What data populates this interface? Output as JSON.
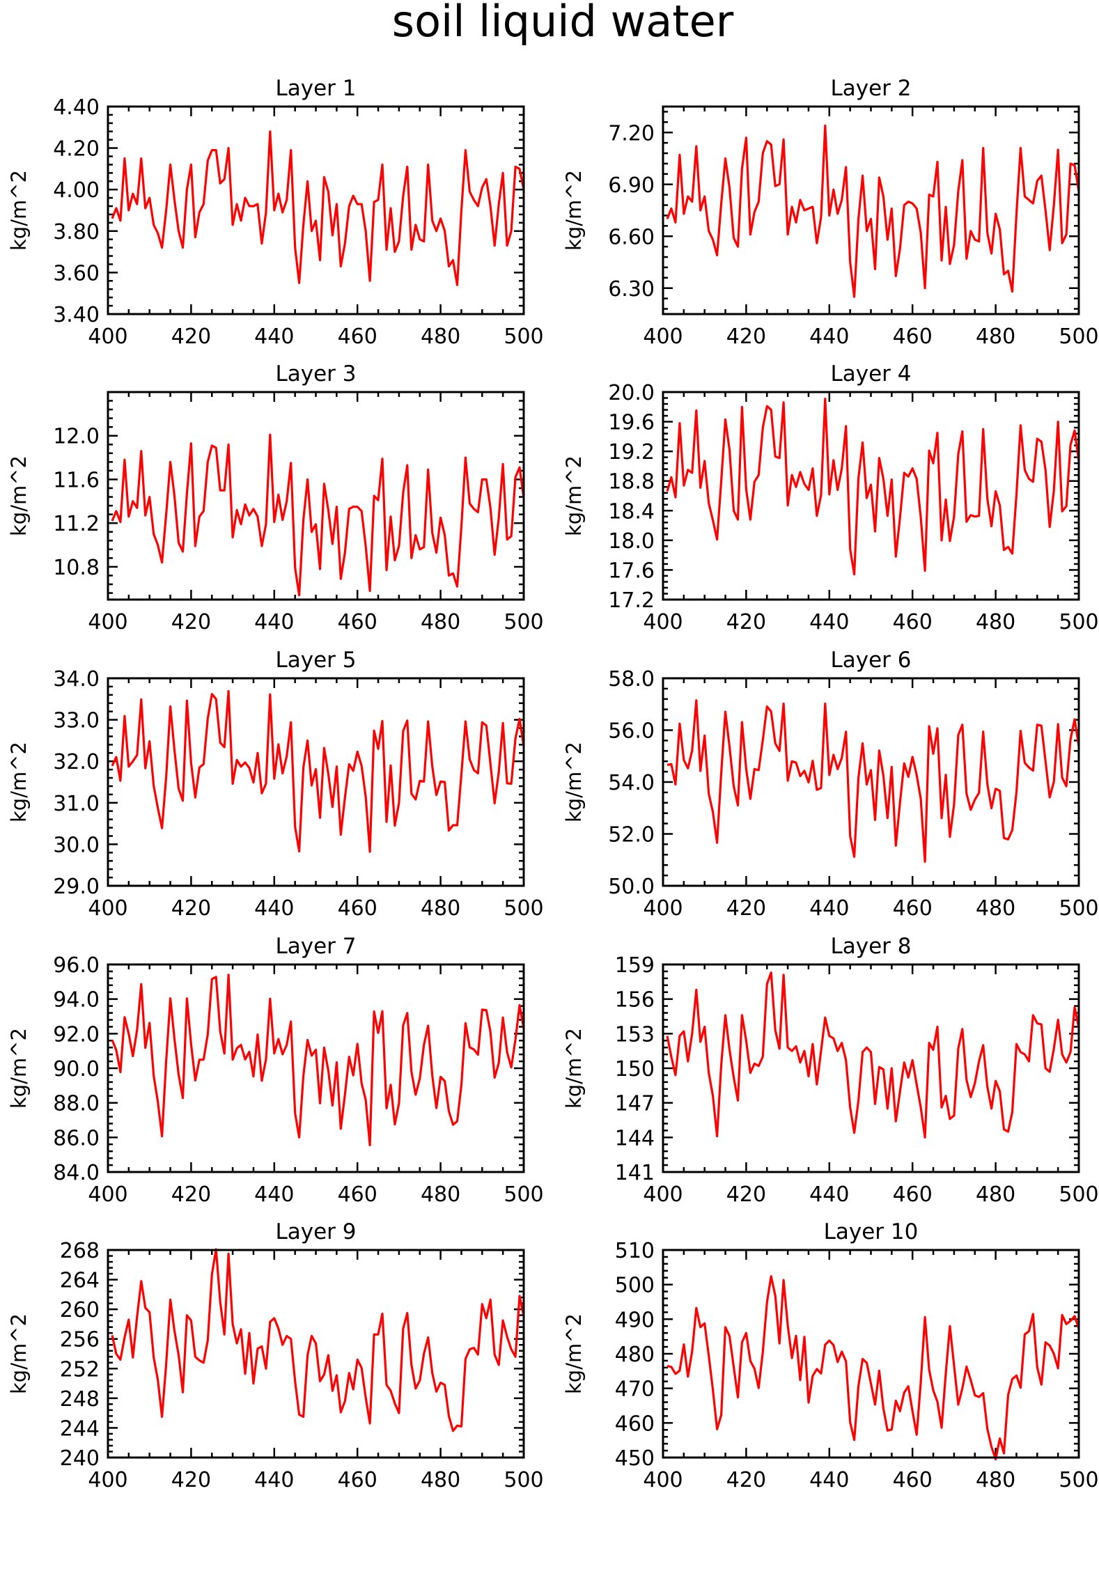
{
  "figure": {
    "title": "soil liquid water",
    "line_color": "#ff0000"
  },
  "chart_data": [
    {
      "type": "line",
      "title": "Layer 1",
      "xlabel": "",
      "ylabel": "kg/m^2",
      "xlim": [
        400,
        500
      ],
      "ylim": [
        3.4,
        4.4
      ],
      "xticks": [
        "400",
        "420",
        "440",
        "460",
        "480",
        "500"
      ],
      "yticks": [
        "3.40",
        "3.60",
        "3.80",
        "4.00",
        "4.20",
        "4.40"
      ],
      "x_start": 401,
      "values": [
        3.86,
        3.91,
        3.85,
        4.15,
        3.9,
        3.98,
        3.93,
        4.15,
        3.91,
        3.96,
        3.83,
        3.79,
        3.72,
        3.9,
        4.12,
        3.95,
        3.8,
        3.72,
        4.0,
        4.12,
        3.77,
        3.89,
        3.93,
        4.14,
        4.19,
        4.19,
        4.03,
        4.05,
        4.2,
        3.83,
        3.93,
        3.85,
        3.96,
        3.92,
        3.92,
        3.93,
        3.74,
        3.89,
        4.28,
        3.9,
        3.98,
        3.89,
        3.95,
        4.19,
        3.72,
        3.55,
        3.83,
        4.04,
        3.8,
        3.85,
        3.66,
        4.06,
        3.99,
        3.78,
        3.93,
        3.63,
        3.74,
        3.92,
        3.97,
        3.93,
        3.93,
        3.8,
        3.56,
        3.94,
        3.95,
        4.12,
        3.71,
        3.91,
        3.7,
        3.75,
        3.97,
        4.11,
        3.71,
        3.83,
        3.76,
        3.75,
        4.12,
        3.85,
        3.8,
        3.86,
        3.8,
        3.63,
        3.66,
        3.54,
        3.9,
        4.19,
        3.99,
        3.95,
        3.92,
        4.01,
        4.05,
        3.92,
        3.73,
        3.93,
        4.08,
        3.73,
        3.8,
        4.11,
        4.1,
        4.0
      ]
    },
    {
      "type": "line",
      "title": "Layer 2",
      "xlabel": "",
      "ylabel": "kg/m^2",
      "xlim": [
        400,
        500
      ],
      "ylim": [
        6.15,
        7.35
      ],
      "xticks": [
        "400",
        "420",
        "440",
        "460",
        "480",
        "500"
      ],
      "yticks": [
        "6.30",
        "6.60",
        "6.90",
        "7.20"
      ],
      "x_start": 401,
      "values": [
        6.7,
        6.76,
        6.68,
        7.07,
        6.73,
        6.83,
        6.8,
        7.12,
        6.75,
        6.83,
        6.63,
        6.58,
        6.49,
        6.79,
        7.05,
        6.88,
        6.59,
        6.54,
        6.99,
        7.17,
        6.61,
        6.74,
        6.8,
        7.08,
        7.15,
        7.13,
        6.89,
        6.9,
        7.16,
        6.61,
        6.77,
        6.68,
        6.81,
        6.75,
        6.76,
        6.77,
        6.56,
        6.71,
        7.24,
        6.72,
        6.87,
        6.73,
        6.81,
        7.0,
        6.45,
        6.25,
        6.7,
        6.95,
        6.63,
        6.7,
        6.41,
        6.94,
        6.83,
        6.58,
        6.76,
        6.37,
        6.53,
        6.78,
        6.8,
        6.79,
        6.76,
        6.62,
        6.3,
        6.84,
        6.83,
        7.03,
        6.46,
        6.77,
        6.44,
        6.55,
        6.86,
        7.04,
        6.47,
        6.63,
        6.58,
        6.57,
        7.11,
        6.62,
        6.5,
        6.73,
        6.64,
        6.38,
        6.4,
        6.28,
        6.73,
        7.11,
        6.83,
        6.81,
        6.79,
        6.92,
        6.95,
        6.75,
        6.52,
        6.78,
        7.1,
        6.56,
        6.61,
        7.02,
        7.01,
        6.86
      ]
    },
    {
      "type": "line",
      "title": "Layer 3",
      "xlabel": "",
      "ylabel": "kg/m^2",
      "xlim": [
        400,
        500
      ],
      "ylim": [
        10.5,
        12.4
      ],
      "xticks": [
        "400",
        "420",
        "440",
        "460",
        "480",
        "500"
      ],
      "yticks": [
        "10.8",
        "11.2",
        "11.6",
        "12.0"
      ],
      "x_start": 401,
      "values": [
        11.22,
        11.31,
        11.21,
        11.78,
        11.26,
        11.4,
        11.34,
        11.86,
        11.27,
        11.44,
        11.1,
        11.0,
        10.84,
        11.28,
        11.76,
        11.45,
        11.02,
        10.94,
        11.47,
        11.93,
        10.99,
        11.26,
        11.31,
        11.76,
        11.91,
        11.89,
        11.5,
        11.5,
        11.92,
        11.07,
        11.32,
        11.19,
        11.37,
        11.27,
        11.33,
        11.26,
        10.99,
        11.19,
        12.01,
        11.21,
        11.46,
        11.23,
        11.4,
        11.75,
        10.79,
        10.54,
        11.23,
        11.6,
        11.12,
        11.19,
        10.78,
        11.56,
        11.32,
        11.01,
        11.35,
        10.69,
        10.93,
        11.33,
        11.35,
        11.35,
        11.31,
        10.99,
        10.58,
        11.45,
        11.41,
        11.79,
        10.77,
        11.26,
        10.86,
        10.99,
        11.48,
        11.73,
        10.88,
        11.09,
        10.96,
        10.98,
        11.69,
        11.11,
        10.93,
        11.25,
        11.09,
        10.72,
        10.74,
        10.62,
        11.17,
        11.8,
        11.38,
        11.33,
        11.3,
        11.6,
        11.6,
        11.34,
        10.91,
        11.25,
        11.74,
        11.05,
        11.08,
        11.62,
        11.71,
        11.43
      ]
    },
    {
      "type": "line",
      "title": "Layer 4",
      "xlabel": "",
      "ylabel": "kg/m^2",
      "xlim": [
        400,
        500
      ],
      "ylim": [
        17.2,
        20.0
      ],
      "xticks": [
        "400",
        "420",
        "440",
        "460",
        "480",
        "500"
      ],
      "yticks": [
        "17.2",
        "17.6",
        "18.0",
        "18.4",
        "18.8",
        "19.2",
        "19.6",
        "20.0"
      ],
      "x_start": 401,
      "values": [
        18.66,
        18.85,
        18.58,
        19.58,
        18.74,
        18.95,
        18.91,
        19.75,
        18.71,
        19.07,
        18.5,
        18.27,
        18.01,
        18.8,
        19.63,
        19.22,
        18.4,
        18.28,
        19.8,
        18.69,
        18.28,
        18.79,
        18.88,
        19.52,
        19.81,
        19.76,
        19.13,
        19.11,
        19.86,
        18.47,
        18.88,
        18.72,
        18.92,
        18.76,
        18.68,
        18.97,
        18.33,
        18.61,
        19.91,
        18.62,
        19.08,
        18.68,
        18.97,
        19.54,
        17.88,
        17.54,
        18.84,
        19.32,
        18.57,
        18.75,
        18.12,
        19.11,
        18.83,
        18.33,
        18.82,
        17.78,
        18.31,
        18.91,
        18.86,
        18.97,
        18.83,
        18.31,
        17.59,
        19.21,
        19.04,
        19.45,
        18.0,
        18.55,
        17.99,
        18.32,
        19.16,
        19.47,
        18.25,
        18.34,
        18.32,
        18.33,
        19.5,
        18.56,
        18.19,
        18.66,
        18.47,
        17.87,
        17.91,
        17.82,
        18.62,
        19.55,
        18.95,
        18.83,
        18.79,
        19.37,
        19.33,
        18.95,
        18.18,
        18.67,
        19.6,
        18.39,
        18.46,
        19.29,
        19.48,
        19.07
      ]
    },
    {
      "type": "line",
      "title": "Layer 5",
      "xlabel": "",
      "ylabel": "kg/m^2",
      "xlim": [
        400,
        500
      ],
      "ylim": [
        29.0,
        34.0
      ],
      "xticks": [
        "400",
        "420",
        "440",
        "460",
        "480",
        "500"
      ],
      "yticks": [
        "29.0",
        "30.0",
        "31.0",
        "32.0",
        "33.0",
        "34.0"
      ],
      "x_start": 401,
      "values": [
        31.89,
        32.1,
        31.53,
        33.09,
        31.87,
        32.0,
        32.15,
        33.49,
        31.83,
        32.48,
        31.41,
        30.88,
        30.39,
        31.62,
        33.32,
        32.27,
        31.34,
        31.05,
        33.46,
        31.96,
        31.13,
        31.85,
        31.93,
        33.03,
        33.62,
        33.5,
        32.45,
        32.34,
        33.69,
        31.46,
        32.03,
        31.87,
        31.97,
        31.84,
        31.49,
        32.2,
        31.23,
        31.46,
        33.61,
        31.58,
        32.41,
        31.71,
        32.12,
        32.94,
        30.42,
        29.83,
        31.85,
        32.5,
        31.42,
        31.81,
        30.64,
        32.32,
        31.7,
        30.9,
        31.87,
        30.23,
        31.13,
        31.93,
        31.77,
        32.23,
        31.89,
        31.15,
        29.82,
        32.74,
        32.3,
        32.97,
        30.54,
        31.9,
        30.45,
        31.0,
        32.73,
        32.98,
        31.22,
        31.08,
        31.53,
        31.51,
        32.96,
        31.87,
        31.19,
        31.51,
        31.5,
        30.33,
        30.46,
        30.46,
        31.69,
        32.96,
        32.05,
        31.79,
        31.71,
        32.94,
        32.86,
        31.94,
        30.99,
        31.74,
        32.92,
        31.47,
        31.46,
        32.55,
        33.02,
        32.36
      ]
    },
    {
      "type": "line",
      "title": "Layer 6",
      "xlabel": "",
      "ylabel": "kg/m^2",
      "xlim": [
        400,
        500
      ],
      "ylim": [
        50.0,
        58.0
      ],
      "xticks": [
        "400",
        "420",
        "440",
        "460",
        "480",
        "500"
      ],
      "yticks": [
        "50.0",
        "52.0",
        "54.0",
        "56.0",
        "58.0"
      ],
      "x_start": 401,
      "values": [
        54.66,
        54.69,
        53.91,
        56.25,
        54.85,
        54.53,
        55.21,
        57.15,
        54.43,
        55.79,
        53.55,
        52.84,
        51.66,
        54.35,
        56.71,
        55.36,
        53.84,
        53.1,
        56.31,
        54.51,
        53.35,
        54.5,
        54.46,
        55.62,
        56.91,
        56.72,
        55.49,
        55.2,
        57.02,
        54.05,
        54.8,
        54.75,
        54.23,
        54.43,
        53.99,
        54.82,
        53.7,
        53.77,
        57.02,
        54.27,
        55.05,
        54.5,
        54.93,
        55.94,
        51.92,
        51.12,
        54.17,
        55.49,
        53.91,
        54.46,
        52.54,
        55.21,
        54.25,
        52.61,
        54.58,
        51.55,
        53.23,
        54.72,
        54.2,
        54.97,
        54.27,
        53.35,
        50.93,
        56.15,
        55.09,
        56.07,
        52.61,
        54.28,
        51.89,
        53.14,
        55.81,
        56.21,
        53.56,
        52.93,
        53.32,
        53.58,
        55.94,
        53.92,
        52.99,
        53.74,
        53.66,
        51.84,
        51.79,
        52.15,
        53.61,
        55.97,
        54.74,
        54.56,
        54.44,
        56.21,
        56.17,
        54.8,
        53.41,
        54.01,
        56.23,
        54.17,
        53.84,
        55.65,
        56.42,
        55.38
      ]
    },
    {
      "type": "line",
      "title": "Layer 7",
      "xlabel": "",
      "ylabel": "kg/m^2",
      "xlim": [
        400,
        500
      ],
      "ylim": [
        84.0,
        96.0
      ],
      "xticks": [
        "400",
        "420",
        "440",
        "460",
        "480",
        "500"
      ],
      "yticks": [
        "84.0",
        "86.0",
        "88.0",
        "90.0",
        "92.0",
        "94.0",
        "96.0"
      ],
      "x_start": 401,
      "values": [
        91.64,
        91.05,
        89.78,
        92.95,
        92.0,
        90.7,
        92.21,
        94.86,
        91.18,
        92.62,
        89.56,
        88.07,
        86.07,
        90.42,
        94.04,
        91.7,
        89.63,
        88.28,
        94.03,
        91.38,
        89.3,
        90.49,
        90.5,
        91.95,
        95.16,
        95.28,
        92.13,
        90.85,
        95.4,
        90.5,
        91.15,
        91.35,
        90.51,
        90.95,
        89.53,
        91.95,
        89.28,
        90.51,
        94.02,
        90.86,
        91.69,
        90.81,
        91.35,
        92.7,
        87.4,
        86.0,
        89.56,
        91.63,
        90.73,
        91.07,
        87.98,
        91.19,
        89.87,
        87.85,
        90.34,
        86.5,
        88.48,
        90.66,
        89.59,
        91.41,
        89.13,
        88.17,
        85.55,
        93.28,
        92.04,
        93.3,
        87.69,
        89.04,
        86.75,
        87.98,
        92.48,
        93.19,
        89.8,
        88.47,
        89.41,
        91.35,
        92.46,
        89.58,
        87.7,
        89.5,
        89.26,
        87.52,
        86.73,
        86.94,
        89.05,
        92.6,
        91.21,
        91.09,
        90.78,
        93.39,
        93.36,
        92.1,
        89.46,
        90.31,
        92.93,
        90.93,
        90.05,
        91.66,
        93.65,
        92.28
      ]
    },
    {
      "type": "line",
      "title": "Layer 8",
      "xlabel": "",
      "ylabel": "kg/m^2",
      "xlim": [
        400,
        500
      ],
      "ylim": [
        141,
        159
      ],
      "xticks": [
        "400",
        "420",
        "440",
        "460",
        "480",
        "500"
      ],
      "yticks": [
        "141",
        "144",
        "147",
        "150",
        "153",
        "156",
        "159"
      ],
      "x_start": 401,
      "values": [
        152.8,
        151.0,
        149.4,
        152.8,
        153.2,
        150.6,
        153.0,
        156.8,
        152.3,
        153.6,
        149.6,
        147.6,
        144.1,
        150.3,
        154.6,
        151.6,
        149.2,
        147.2,
        154.6,
        152.4,
        149.6,
        150.4,
        150.2,
        151.0,
        157.3,
        158.3,
        153.3,
        151.7,
        158.1,
        151.8,
        151.5,
        151.9,
        150.5,
        151.5,
        149.3,
        152.1,
        148.6,
        151.5,
        154.4,
        152.8,
        152.6,
        151.5,
        152.2,
        150.7,
        146.6,
        144.4,
        147.2,
        151.4,
        151.8,
        151.4,
        146.9,
        150.1,
        149.9,
        146.5,
        150.0,
        145.4,
        148.0,
        150.5,
        149.2,
        150.7,
        148.6,
        146.6,
        144.0,
        152.2,
        151.6,
        153.6,
        146.6,
        147.6,
        145.6,
        145.9,
        151.7,
        153.4,
        149.0,
        147.5,
        148.7,
        150.6,
        152.0,
        148.4,
        146.5,
        148.9,
        148.0,
        144.7,
        144.5,
        146.2,
        152.1,
        151.4,
        151.2,
        150.6,
        154.6,
        153.9,
        153.8,
        150.0,
        149.7,
        151.7,
        154.2,
        151.2,
        150.5,
        151.4,
        155.3,
        153.5
      ]
    },
    {
      "type": "line",
      "title": "Layer 9",
      "xlabel": "",
      "ylabel": "kg/m^2",
      "xlim": [
        400,
        500
      ],
      "ylim": [
        240,
        268
      ],
      "xticks": [
        "400",
        "420",
        "440",
        "460",
        "480",
        "500"
      ],
      "yticks": [
        "240",
        "244",
        "248",
        "252",
        "256",
        "260",
        "264",
        "268"
      ],
      "x_start": 401,
      "values": [
        256.5,
        254.0,
        253.2,
        256.2,
        258.6,
        253.5,
        259.0,
        263.8,
        260.2,
        259.6,
        253.5,
        250.5,
        245.5,
        252.6,
        261.3,
        257.1,
        253.8,
        248.8,
        259.2,
        258.5,
        253.6,
        253.1,
        252.8,
        255.8,
        264.7,
        268.1,
        261.0,
        256.6,
        267.5,
        258.0,
        255.4,
        257.3,
        251.3,
        256.8,
        250.0,
        254.7,
        255.0,
        252.0,
        258.3,
        258.8,
        257.4,
        255.2,
        256.4,
        256.0,
        250.3,
        245.8,
        245.5,
        253.8,
        256.4,
        255.4,
        250.3,
        251.2,
        253.8,
        249.0,
        251.1,
        246.1,
        247.6,
        251.4,
        249.2,
        253.2,
        252.1,
        248.1,
        244.6,
        256.6,
        256.6,
        259.4,
        249.8,
        249.0,
        247.3,
        246.0,
        257.4,
        259.5,
        252.5,
        249.3,
        250.4,
        254.0,
        256.2,
        251.4,
        248.9,
        250.1,
        249.8,
        245.6,
        243.6,
        244.3,
        244.2,
        253.3,
        254.6,
        254.8,
        253.9,
        260.7,
        258.8,
        261.3,
        253.9,
        252.5,
        258.5,
        256.3,
        254.6,
        253.6,
        261.8,
        259.1
      ]
    },
    {
      "type": "line",
      "title": "Layer 10",
      "xlabel": "",
      "ylabel": "kg/m^2",
      "xlim": [
        400,
        500
      ],
      "ylim": [
        450,
        510
      ],
      "xticks": [
        "400",
        "420",
        "440",
        "460",
        "480",
        "500"
      ],
      "yticks": [
        "450",
        "460",
        "470",
        "480",
        "490",
        "500",
        "510"
      ],
      "x_start": 401,
      "values": [
        476.5,
        476.2,
        474.2,
        475.1,
        482.7,
        473.4,
        480.7,
        493.2,
        487.7,
        488.8,
        479.4,
        469.6,
        458.2,
        462.3,
        487.7,
        485.1,
        476.2,
        467.4,
        483.3,
        486.0,
        477.9,
        475.7,
        470.1,
        480.5,
        494.9,
        502.4,
        496.8,
        483.0,
        501.3,
        488.2,
        478.8,
        485.2,
        472.4,
        484.9,
        465.9,
        473.6,
        475.6,
        474.3,
        482.6,
        483.8,
        482.5,
        477.6,
        480.6,
        477.8,
        460.2,
        455.1,
        470.7,
        478.5,
        477.4,
        471.4,
        465.3,
        475.1,
        464.2,
        457.8,
        458.1,
        466.4,
        463.4,
        468.8,
        470.6,
        463.4,
        456.6,
        471.8,
        490.6,
        475.4,
        469.4,
        466.1,
        458.6,
        474.3,
        488.0,
        476.6,
        465.3,
        470.0,
        476.3,
        472.4,
        468.0,
        467.5,
        468.6,
        458.3,
        453.1,
        449.5,
        455.5,
        451.2,
        468.1,
        472.7,
        473.7,
        470.2,
        485.6,
        486.5,
        491.5,
        476.1,
        471.1,
        483.3,
        482.4,
        480.0,
        475.8,
        491.2,
        488.6,
        489.5,
        490.9,
        487.3
      ]
    }
  ]
}
